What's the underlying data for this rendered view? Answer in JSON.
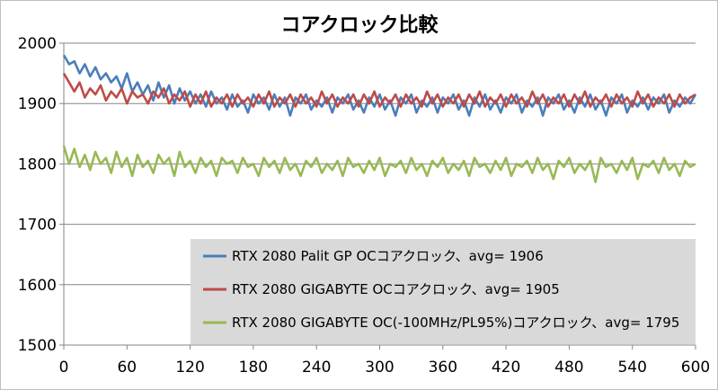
{
  "chart_data": {
    "type": "line",
    "title": "コアクロック比較",
    "xlabel": "",
    "ylabel": "",
    "xlim": [
      0,
      600
    ],
    "ylim": [
      1500,
      2000
    ],
    "x_ticks": [
      "0",
      "60",
      "120",
      "180",
      "240",
      "300",
      "360",
      "420",
      "480",
      "540",
      "600"
    ],
    "y_ticks": [
      "2000",
      "1900",
      "1800",
      "1700",
      "1600",
      "1500"
    ],
    "grid": "horizontal",
    "legend_position": "bottom-right-inside",
    "series": [
      {
        "name": "RTX 2080 Palit GP OCコアクロック、avg= 1906",
        "color": "#4a7ebb",
        "x": [
          0,
          5,
          10,
          15,
          20,
          25,
          30,
          35,
          40,
          45,
          50,
          55,
          60,
          65,
          70,
          75,
          80,
          85,
          90,
          95,
          100,
          105,
          110,
          115,
          120,
          125,
          130,
          135,
          140,
          145,
          150,
          155,
          160,
          165,
          170,
          175,
          180,
          185,
          190,
          195,
          200,
          205,
          210,
          215,
          220,
          225,
          230,
          235,
          240,
          245,
          250,
          255,
          260,
          265,
          270,
          275,
          280,
          285,
          290,
          295,
          300,
          305,
          310,
          315,
          320,
          325,
          330,
          335,
          340,
          345,
          350,
          355,
          360,
          365,
          370,
          375,
          380,
          385,
          390,
          395,
          400,
          405,
          410,
          415,
          420,
          425,
          430,
          435,
          440,
          445,
          450,
          455,
          460,
          465,
          470,
          475,
          480,
          485,
          490,
          495,
          500,
          505,
          510,
          515,
          520,
          525,
          530,
          535,
          540,
          545,
          550,
          555,
          560,
          565,
          570,
          575,
          580,
          585,
          590,
          595,
          600
        ],
        "values": [
          1980,
          1965,
          1970,
          1950,
          1965,
          1945,
          1960,
          1940,
          1950,
          1935,
          1945,
          1925,
          1950,
          1920,
          1935,
          1915,
          1930,
          1905,
          1935,
          1910,
          1930,
          1900,
          1925,
          1905,
          1920,
          1900,
          1915,
          1895,
          1920,
          1900,
          1910,
          1890,
          1915,
          1895,
          1905,
          1885,
          1915,
          1900,
          1910,
          1890,
          1915,
          1895,
          1910,
          1880,
          1910,
          1900,
          1915,
          1890,
          1905,
          1895,
          1910,
          1885,
          1910,
          1900,
          1915,
          1890,
          1905,
          1885,
          1910,
          1895,
          1915,
          1890,
          1905,
          1880,
          1910,
          1900,
          1915,
          1885,
          1905,
          1895,
          1910,
          1885,
          1910,
          1900,
          1915,
          1890,
          1905,
          1880,
          1910,
          1895,
          1915,
          1890,
          1905,
          1885,
          1910,
          1900,
          1915,
          1885,
          1905,
          1895,
          1910,
          1880,
          1910,
          1900,
          1915,
          1890,
          1905,
          1885,
          1910,
          1895,
          1915,
          1890,
          1905,
          1880,
          1910,
          1900,
          1915,
          1885,
          1905,
          1895,
          1910,
          1890,
          1910,
          1900,
          1915,
          1885,
          1905,
          1895,
          1910,
          1900,
          1915
        ]
      },
      {
        "name": "RTX 2080 GIGABYTE OCコアクロック、avg= 1905",
        "color": "#be4b48",
        "x": [
          0,
          5,
          10,
          15,
          20,
          25,
          30,
          35,
          40,
          45,
          50,
          55,
          60,
          65,
          70,
          75,
          80,
          85,
          90,
          95,
          100,
          105,
          110,
          115,
          120,
          125,
          130,
          135,
          140,
          145,
          150,
          155,
          160,
          165,
          170,
          175,
          180,
          185,
          190,
          195,
          200,
          205,
          210,
          215,
          220,
          225,
          230,
          235,
          240,
          245,
          250,
          255,
          260,
          265,
          270,
          275,
          280,
          285,
          290,
          295,
          300,
          305,
          310,
          315,
          320,
          325,
          330,
          335,
          340,
          345,
          350,
          355,
          360,
          365,
          370,
          375,
          380,
          385,
          390,
          395,
          400,
          405,
          410,
          415,
          420,
          425,
          430,
          435,
          440,
          445,
          450,
          455,
          460,
          465,
          470,
          475,
          480,
          485,
          490,
          495,
          500,
          505,
          510,
          515,
          520,
          525,
          530,
          535,
          540,
          545,
          550,
          555,
          560,
          565,
          570,
          575,
          580,
          585,
          590,
          595,
          600
        ],
        "values": [
          1950,
          1935,
          1920,
          1935,
          1910,
          1925,
          1915,
          1930,
          1905,
          1920,
          1910,
          1925,
          1900,
          1920,
          1910,
          1915,
          1900,
          1920,
          1910,
          1925,
          1900,
          1915,
          1905,
          1920,
          1895,
          1915,
          1900,
          1920,
          1895,
          1910,
          1900,
          1915,
          1895,
          1915,
          1900,
          1910,
          1895,
          1915,
          1900,
          1920,
          1895,
          1910,
          1900,
          1915,
          1895,
          1915,
          1900,
          1910,
          1895,
          1920,
          1900,
          1915,
          1895,
          1910,
          1900,
          1915,
          1895,
          1915,
          1900,
          1920,
          1895,
          1910,
          1900,
          1915,
          1895,
          1915,
          1900,
          1910,
          1895,
          1920,
          1900,
          1915,
          1895,
          1910,
          1900,
          1915,
          1895,
          1915,
          1900,
          1920,
          1895,
          1910,
          1900,
          1915,
          1895,
          1915,
          1900,
          1910,
          1895,
          1920,
          1900,
          1915,
          1895,
          1910,
          1900,
          1915,
          1895,
          1915,
          1900,
          1920,
          1895,
          1910,
          1900,
          1915,
          1895,
          1915,
          1900,
          1910,
          1895,
          1920,
          1900,
          1915,
          1895,
          1910,
          1900,
          1915,
          1895,
          1915,
          1900,
          1910,
          1915
        ]
      },
      {
        "name": "RTX 2080 GIGABYTE OC(-100MHz/PL95%)コアクロック、avg= 1795",
        "color": "#98b954",
        "x": [
          0,
          5,
          10,
          15,
          20,
          25,
          30,
          35,
          40,
          45,
          50,
          55,
          60,
          65,
          70,
          75,
          80,
          85,
          90,
          95,
          100,
          105,
          110,
          115,
          120,
          125,
          130,
          135,
          140,
          145,
          150,
          155,
          160,
          165,
          170,
          175,
          180,
          185,
          190,
          195,
          200,
          205,
          210,
          215,
          220,
          225,
          230,
          235,
          240,
          245,
          250,
          255,
          260,
          265,
          270,
          275,
          280,
          285,
          290,
          295,
          300,
          305,
          310,
          315,
          320,
          325,
          330,
          335,
          340,
          345,
          350,
          355,
          360,
          365,
          370,
          375,
          380,
          385,
          390,
          395,
          400,
          405,
          410,
          415,
          420,
          425,
          430,
          435,
          440,
          445,
          450,
          455,
          460,
          465,
          470,
          475,
          480,
          485,
          490,
          495,
          500,
          505,
          510,
          515,
          520,
          525,
          530,
          535,
          540,
          545,
          550,
          555,
          560,
          565,
          570,
          575,
          580,
          585,
          590,
          595,
          600
        ],
        "values": [
          1830,
          1800,
          1825,
          1795,
          1815,
          1790,
          1820,
          1800,
          1810,
          1785,
          1820,
          1795,
          1810,
          1780,
          1815,
          1795,
          1805,
          1785,
          1815,
          1800,
          1810,
          1780,
          1820,
          1795,
          1805,
          1785,
          1810,
          1795,
          1805,
          1780,
          1810,
          1800,
          1805,
          1785,
          1810,
          1795,
          1800,
          1780,
          1810,
          1795,
          1805,
          1785,
          1810,
          1790,
          1800,
          1780,
          1805,
          1795,
          1810,
          1785,
          1800,
          1790,
          1805,
          1780,
          1810,
          1795,
          1800,
          1785,
          1805,
          1790,
          1810,
          1780,
          1800,
          1795,
          1805,
          1785,
          1810,
          1790,
          1800,
          1780,
          1805,
          1795,
          1810,
          1785,
          1800,
          1790,
          1805,
          1780,
          1810,
          1795,
          1800,
          1785,
          1805,
          1790,
          1810,
          1780,
          1800,
          1795,
          1805,
          1785,
          1810,
          1790,
          1800,
          1775,
          1805,
          1795,
          1810,
          1785,
          1800,
          1790,
          1805,
          1770,
          1810,
          1795,
          1800,
          1785,
          1805,
          1790,
          1810,
          1775,
          1800,
          1795,
          1805,
          1785,
          1810,
          1790,
          1800,
          1780,
          1805,
          1795,
          1800
        ]
      }
    ]
  }
}
